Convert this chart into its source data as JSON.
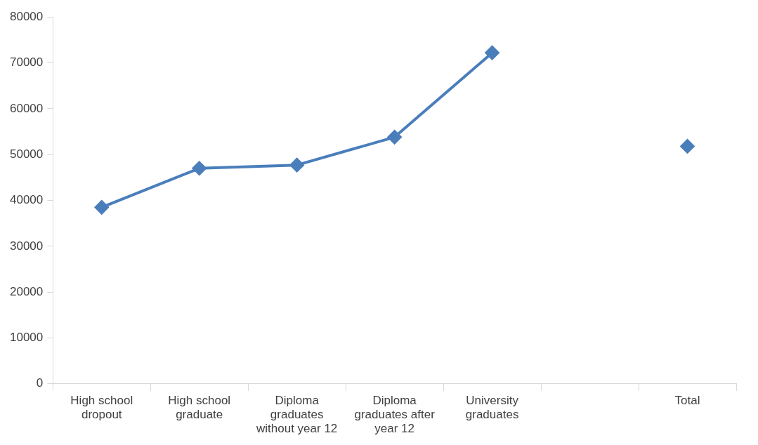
{
  "chart_data": {
    "type": "line",
    "categories": [
      "High school dropout",
      "High school graduate",
      "Diploma graduates without year 12",
      "Diploma graduates after year 12",
      "University graduates",
      null,
      "Total"
    ],
    "series": [
      {
        "color": "#4a7ebb",
        "values": [
          38500,
          47000,
          47700,
          53800,
          72200,
          null,
          51800
        ]
      }
    ],
    "ylim": [
      0,
      80000
    ],
    "yticks": [
      0,
      10000,
      20000,
      30000,
      40000,
      50000,
      60000,
      70000,
      80000
    ],
    "marker": "diamond",
    "line_style": "solid"
  }
}
